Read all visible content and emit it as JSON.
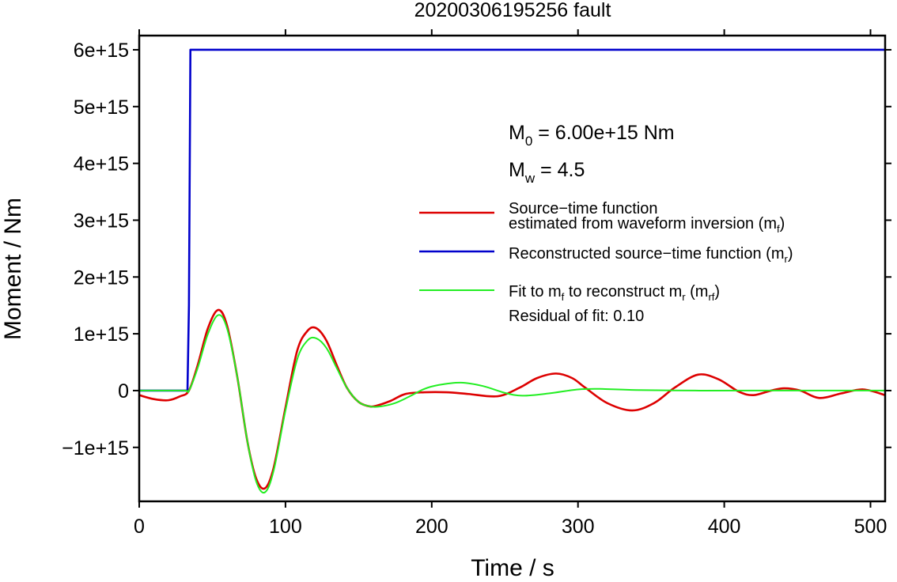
{
  "chart_data": {
    "type": "line",
    "title": "20200306195256 fault",
    "xlabel": "Time / s",
    "ylabel": "Moment / Nm",
    "xlim": [
      0,
      510
    ],
    "ylim": [
      -1950000000000000.0,
      6250000000000000.0
    ],
    "x_ticks": [
      0,
      100,
      200,
      300,
      400,
      500
    ],
    "x_tick_labels": [
      "0",
      "100",
      "200",
      "300",
      "400",
      "500"
    ],
    "y_ticks": [
      -1000000000000000.0,
      0,
      1000000000000000.0,
      2000000000000000.0,
      3000000000000000.0,
      4000000000000000.0,
      5000000000000000.0,
      6000000000000000.0
    ],
    "y_tick_labels": [
      "−1e+15",
      "0",
      "1e+15",
      "2e+15",
      "3e+15",
      "4e+15",
      "5e+15",
      "6e+15"
    ],
    "grid": false,
    "legend_position": "right",
    "annotations": {
      "m0_sym": "M",
      "m0_sub": "0",
      "m0_rest": " = 6.00e+15 Nm",
      "mw_sym": "M",
      "mw_sub": "w",
      "mw_rest": " = 4.5",
      "residual": "Residual of fit: 0.10"
    },
    "legend": [
      {
        "line1": "Source−time function",
        "line2_a": "estimated from waveform inversion (m",
        "line2_sub": "f",
        "line2_b": ")",
        "color": "#dd0000"
      },
      {
        "line1_a": "Reconstructed source−time function (m",
        "line1_sub": "r",
        "line1_b": ")",
        "color": "#0000cc"
      },
      {
        "p1": "Fit to m",
        "s1": "f",
        "p2": " to reconstruct m",
        "s2": "r",
        "p3": " (m",
        "s3": "rf",
        "p4": ")",
        "color": "#22ee22"
      }
    ],
    "series": [
      {
        "color": "#dd0000",
        "x": [
          0,
          10,
          20,
          28,
          34,
          40,
          47,
          54,
          60,
          67,
          74,
          80,
          86,
          92,
          100,
          108,
          115,
          121,
          128,
          135,
          142,
          150,
          158,
          163,
          172,
          182,
          195,
          210,
          225,
          245,
          260,
          272,
          285,
          296,
          305,
          320,
          337,
          352,
          366,
          382,
          396,
          410,
          420,
          432,
          441,
          452,
          465,
          480,
          495,
          510
        ],
        "y": [
          -80000000000000.0,
          -150000000000000.0,
          -170000000000000.0,
          -100000000000000.0,
          0,
          450000000000000.0,
          1100000000000000.0,
          1420000000000000.0,
          1150000000000000.0,
          250000000000000.0,
          -900000000000000.0,
          -1550000000000000.0,
          -1720000000000000.0,
          -1350000000000000.0,
          -300000000000000.0,
          700000000000000.0,
          1050000000000000.0,
          1100000000000000.0,
          880000000000000.0,
          450000000000000.0,
          50000000000000.0,
          -200000000000000.0,
          -280000000000000.0,
          -260000000000000.0,
          -180000000000000.0,
          -60000000000000.0,
          -30000000000000.0,
          -30000000000000.0,
          -60000000000000.0,
          -100000000000000.0,
          50000000000000.0,
          220000000000000.0,
          300000000000000.0,
          220000000000000.0,
          50000000000000.0,
          -220000000000000.0,
          -350000000000000.0,
          -220000000000000.0,
          50000000000000.0,
          280000000000000.0,
          200000000000000.0,
          -20000000000000.0,
          -80000000000000.0,
          0,
          40000000000000.0,
          0,
          -130000000000000.0,
          -50000000000000.0,
          20000000000000.0,
          -80000000000000.0
        ]
      },
      {
        "color": "#0000cc",
        "x": [
          0,
          33,
          34,
          35,
          510
        ],
        "y": [
          0,
          0,
          1500000000000000.0,
          6000000000000000.0,
          6000000000000000.0
        ]
      },
      {
        "color": "#22ee22",
        "x": [
          0,
          30,
          34,
          40,
          47,
          54,
          60,
          67,
          74,
          80,
          86,
          92,
          100,
          108,
          115,
          121,
          128,
          135,
          142,
          150,
          158,
          165,
          175,
          185,
          195,
          205,
          220,
          235,
          250,
          262,
          280,
          300,
          315,
          340,
          380,
          420,
          460,
          510
        ],
        "y": [
          0,
          0,
          0,
          400000000000000.0,
          1000000000000000.0,
          1330000000000000.0,
          1100000000000000.0,
          250000000000000.0,
          -900000000000000.0,
          -1600000000000000.0,
          -1790000000000000.0,
          -1400000000000000.0,
          -350000000000000.0,
          550000000000000.0,
          880000000000000.0,
          920000000000000.0,
          750000000000000.0,
          400000000000000.0,
          50000000000000.0,
          -200000000000000.0,
          -280000000000000.0,
          -280000000000000.0,
          -220000000000000.0,
          -100000000000000.0,
          30000000000000.0,
          100000000000000.0,
          140000000000000.0,
          80000000000000.0,
          -40000000000000.0,
          -90000000000000.0,
          -50000000000000.0,
          20000000000000.0,
          30000000000000.0,
          10000000000000.0,
          0,
          0,
          0,
          0
        ]
      }
    ]
  }
}
